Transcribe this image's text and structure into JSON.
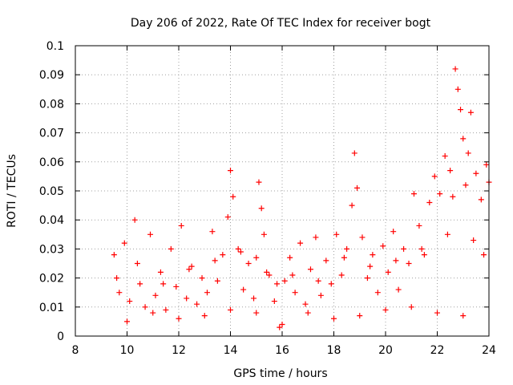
{
  "chart_data": {
    "type": "scatter",
    "title": "Day 206 of 2022, Rate Of TEC Index for receiver bogt",
    "xlabel": "GPS time / hours",
    "ylabel": "ROTI / TECUs",
    "xlim": [
      8,
      24
    ],
    "ylim": [
      0,
      0.1
    ],
    "xticks": [
      "8",
      "10",
      "12",
      "14",
      "16",
      "18",
      "20",
      "22",
      "24"
    ],
    "yticks": [
      "0",
      "0.01",
      "0.02",
      "0.03",
      "0.04",
      "0.05",
      "0.06",
      "0.07",
      "0.08",
      "0.09",
      "0.1"
    ],
    "grid": true,
    "marker": "+",
    "series": [
      {
        "name": "ROTI",
        "color": "#ff0000",
        "x": [
          9.5,
          9.7,
          9.9,
          10.1,
          10.3,
          10.5,
          10.7,
          10.9,
          11.1,
          11.3,
          11.5,
          11.7,
          11.9,
          12.1,
          12.3,
          12.5,
          12.7,
          12.9,
          13.1,
          13.3,
          13.5,
          13.7,
          13.9,
          14.0,
          14.1,
          14.3,
          14.5,
          14.7,
          14.9,
          15.0,
          15.1,
          15.2,
          15.3,
          15.5,
          15.7,
          15.8,
          15.9,
          16.1,
          16.3,
          16.5,
          16.7,
          16.9,
          17.1,
          17.3,
          17.5,
          17.7,
          17.9,
          18.1,
          18.3,
          18.5,
          18.7,
          18.8,
          18.9,
          19.1,
          19.3,
          19.5,
          19.7,
          19.9,
          20.1,
          20.3,
          20.5,
          20.7,
          20.9,
          21.1,
          21.3,
          21.5,
          21.7,
          21.9,
          22.1,
          22.3,
          22.5,
          22.6,
          22.7,
          22.8,
          22.9,
          23.0,
          23.1,
          23.2,
          23.3,
          23.5,
          23.7,
          23.9,
          24.0,
          10.0,
          11.0,
          12.0,
          13.0,
          14.0,
          15.0,
          16.0,
          17.0,
          18.0,
          19.0,
          20.0,
          21.0,
          22.0,
          23.0,
          9.6,
          10.4,
          11.4,
          12.4,
          13.4,
          14.4,
          15.4,
          16.4,
          17.4,
          18.4,
          19.4,
          20.4,
          21.4,
          22.4,
          23.4,
          23.8
        ],
        "y": [
          0.028,
          0.015,
          0.032,
          0.012,
          0.04,
          0.018,
          0.01,
          0.035,
          0.014,
          0.022,
          0.009,
          0.03,
          0.017,
          0.038,
          0.013,
          0.024,
          0.011,
          0.02,
          0.015,
          0.036,
          0.019,
          0.028,
          0.041,
          0.057,
          0.048,
          0.03,
          0.016,
          0.025,
          0.013,
          0.027,
          0.053,
          0.044,
          0.035,
          0.021,
          0.012,
          0.018,
          0.003,
          0.019,
          0.027,
          0.015,
          0.032,
          0.011,
          0.023,
          0.034,
          0.014,
          0.026,
          0.018,
          0.035,
          0.021,
          0.03,
          0.045,
          0.063,
          0.051,
          0.034,
          0.02,
          0.028,
          0.015,
          0.031,
          0.022,
          0.036,
          0.016,
          0.03,
          0.025,
          0.049,
          0.038,
          0.028,
          0.046,
          0.055,
          0.049,
          0.062,
          0.057,
          0.048,
          0.092,
          0.085,
          0.078,
          0.068,
          0.052,
          0.063,
          0.077,
          0.056,
          0.047,
          0.059,
          0.053,
          0.005,
          0.008,
          0.006,
          0.007,
          0.009,
          0.008,
          0.004,
          0.008,
          0.006,
          0.007,
          0.009,
          0.01,
          0.008,
          0.007,
          0.02,
          0.025,
          0.018,
          0.023,
          0.026,
          0.029,
          0.022,
          0.021,
          0.019,
          0.027,
          0.024,
          0.026,
          0.03,
          0.035,
          0.033,
          0.028
        ]
      }
    ]
  }
}
